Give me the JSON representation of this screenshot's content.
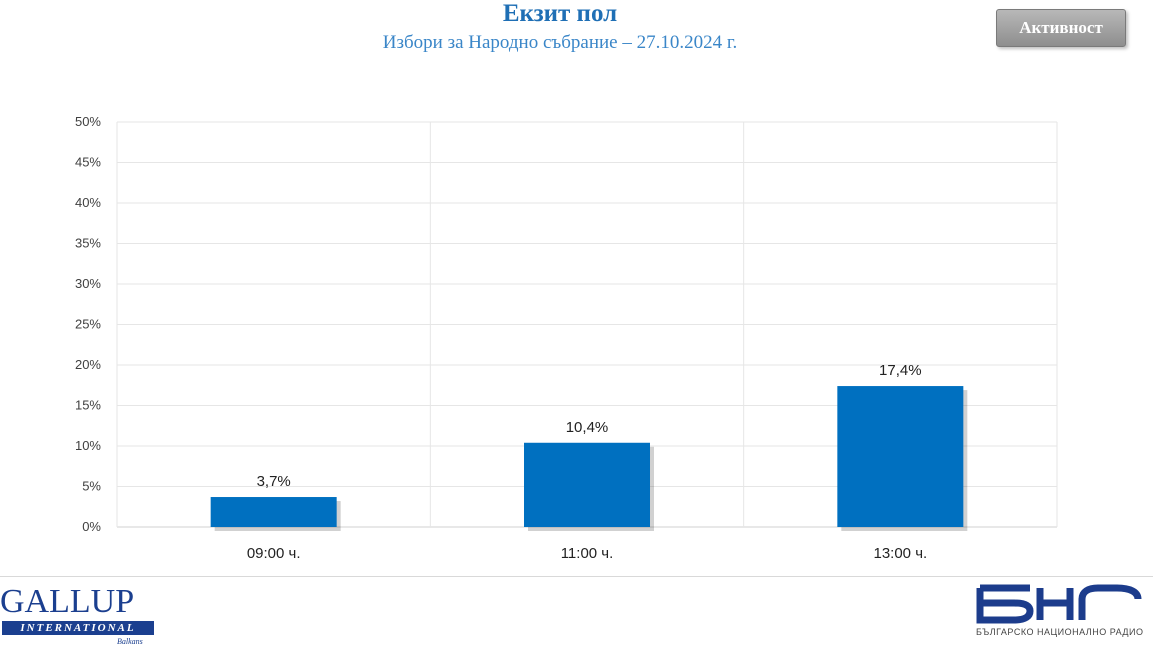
{
  "header": {
    "title": "Екзит пол",
    "subtitle": "Избори за Народно събрание – 27.10.2024 г.",
    "button_label": "Активност"
  },
  "colors": {
    "bar": "#0070c0",
    "title": "#1f6fb5",
    "grid": "#e6e6e6"
  },
  "chart_data": {
    "type": "bar",
    "categories": [
      "09:00 ч.",
      "11:00 ч.",
      "13:00 ч."
    ],
    "values": [
      3.7,
      10.4,
      17.4
    ],
    "value_labels": [
      "3,7%",
      "10,4%",
      "17,4%"
    ],
    "ylim": [
      0,
      50
    ],
    "yticks": [
      "0%",
      "5%",
      "10%",
      "15%",
      "20%",
      "25%",
      "30%",
      "35%",
      "40%",
      "45%",
      "50%"
    ],
    "grid": true,
    "legend": "none"
  },
  "footer": {
    "gallup_name": "GALLUP",
    "gallup_sub": "INTERNATIONAL",
    "gallup_region": "Balkans",
    "bnr_caption": "БЪЛГАРСКО НАЦИОНАЛНО РАДИО"
  }
}
